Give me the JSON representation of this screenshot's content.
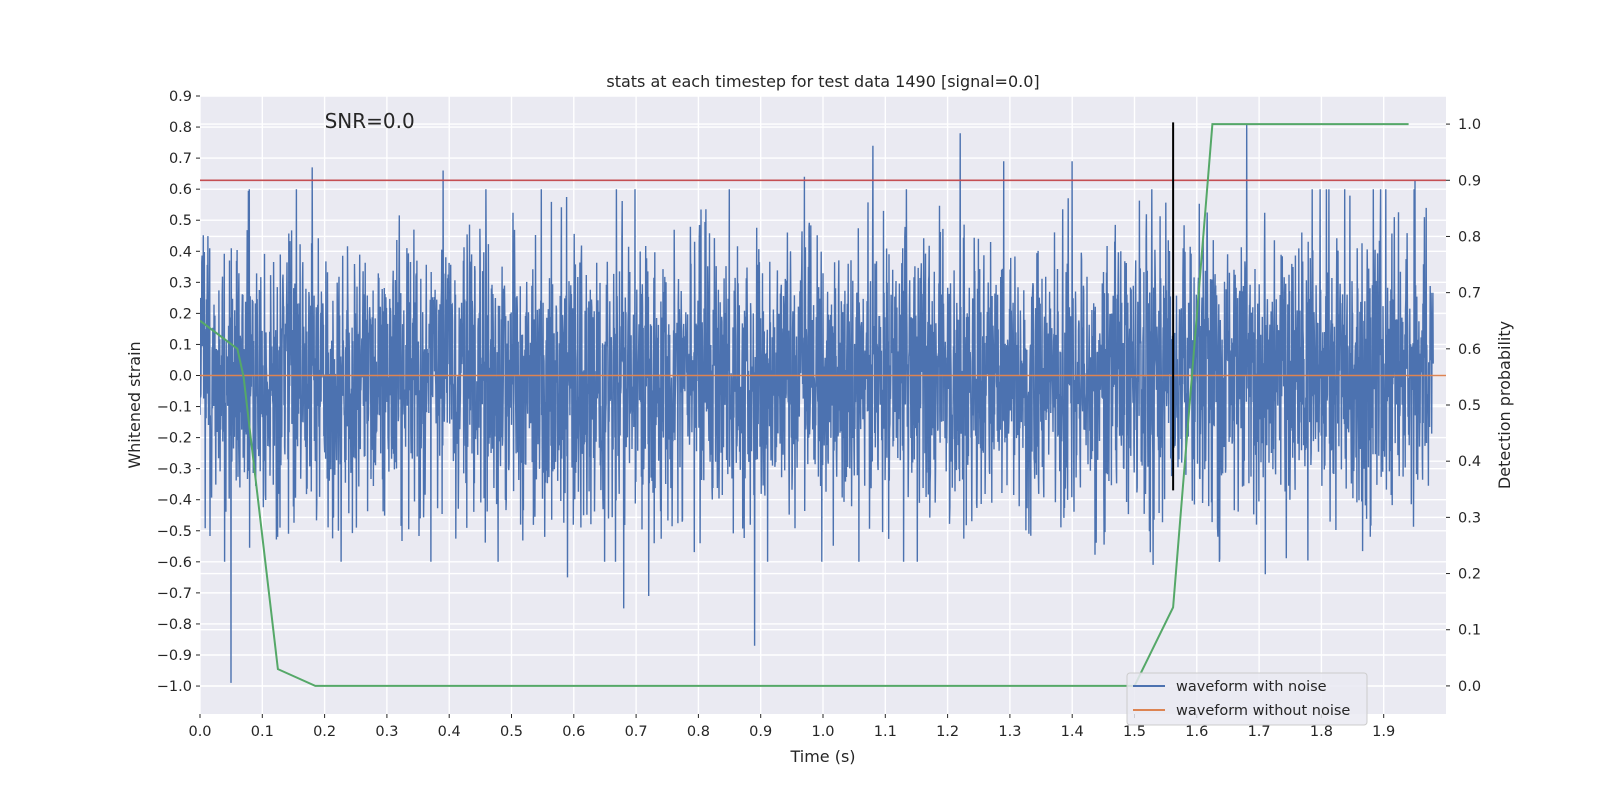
{
  "chart_data": {
    "type": "line",
    "title": "stats at each timestep for test data 1490 [signal=0.0]",
    "xlabel": "Time (s)",
    "ylabel": "Whitened strain",
    "y2label": "Detection probability",
    "xlim": [
      0.0,
      2.0
    ],
    "ylim": [
      -1.09,
      0.9
    ],
    "y2lim": [
      -0.05,
      1.05
    ],
    "x_ticks": [
      0.0,
      0.1,
      0.2,
      0.3,
      0.4,
      0.5,
      0.6,
      0.7,
      0.8,
      0.9,
      1.0,
      1.1,
      1.2,
      1.3,
      1.4,
      1.5,
      1.6,
      1.7,
      1.8,
      1.9
    ],
    "x_tick_labels": [
      "0.0",
      "0.1",
      "0.2",
      "0.3",
      "0.4",
      "0.5",
      "0.6",
      "0.7",
      "0.8",
      "0.9",
      "1.0",
      "1.1",
      "1.2",
      "1.3",
      "1.4",
      "1.5",
      "1.6",
      "1.7",
      "1.8",
      "1.9"
    ],
    "y_ticks": [
      0.9,
      0.8,
      0.7,
      0.6,
      0.5,
      0.4,
      0.3,
      0.2,
      0.1,
      0.0,
      -0.1,
      -0.2,
      -0.3,
      -0.4,
      -0.5,
      -0.6,
      -0.7,
      -0.8,
      -0.9,
      -1.0
    ],
    "y_tick_labels": [
      "0.9",
      "0.8",
      "0.7",
      "0.6",
      "0.5",
      "0.4",
      "0.3",
      "0.2",
      "0.1",
      "0.0",
      "−0.1",
      "−0.2",
      "−0.3",
      "−0.4",
      "−0.5",
      "−0.6",
      "−0.7",
      "−0.8",
      "−0.9",
      "−1.0"
    ],
    "y2_ticks": [
      1.0,
      0.9,
      0.8,
      0.7,
      0.6,
      0.5,
      0.4,
      0.3,
      0.2,
      0.1,
      0.0
    ],
    "y2_tick_labels": [
      "1.0",
      "0.9",
      "0.8",
      "0.7",
      "0.6",
      "0.5",
      "0.4",
      "0.3",
      "0.2",
      "0.1",
      "0.0"
    ],
    "grid": true,
    "annotation": "SNR=0.0",
    "annotation_at": [
      0.2,
      0.82
    ],
    "threshold_line": {
      "axis": "y2",
      "value": 0.9,
      "color": "#c44e52"
    },
    "vertical_line": {
      "x": 1.562,
      "y_from": -0.37,
      "y_to": 0.815,
      "color": "#000000"
    },
    "noise_series": {
      "name": "waveform with noise",
      "color": "#4c72b0",
      "sample_rate": 2048,
      "duration": 1.98,
      "seed": 1490,
      "sigma": 0.22,
      "spikes": [
        {
          "x": 0.05,
          "y": -0.99
        },
        {
          "x": 0.18,
          "y": 0.67
        },
        {
          "x": 0.39,
          "y": 0.66
        },
        {
          "x": 0.59,
          "y": -0.65
        },
        {
          "x": 0.68,
          "y": -0.75
        },
        {
          "x": 0.72,
          "y": -0.71
        },
        {
          "x": 0.89,
          "y": -0.87
        },
        {
          "x": 0.97,
          "y": 0.64
        },
        {
          "x": 1.08,
          "y": 0.74
        },
        {
          "x": 1.22,
          "y": 0.78
        },
        {
          "x": 1.29,
          "y": 0.69
        },
        {
          "x": 1.4,
          "y": 0.69
        },
        {
          "x": 1.53,
          "y": -0.61
        },
        {
          "x": 1.68,
          "y": 0.81
        },
        {
          "x": 1.71,
          "y": -0.64
        },
        {
          "x": 1.95,
          "y": 0.63
        }
      ]
    },
    "clean_series": {
      "name": "waveform without noise",
      "color": "#dd8452",
      "value": 0.0
    },
    "probability_series": {
      "name": "Detection probability",
      "axis": "y2",
      "color": "#55a868",
      "x": [
        0.0,
        0.06,
        0.07,
        0.125,
        0.185,
        0.25,
        0.5,
        1.0,
        1.5,
        1.562,
        1.625,
        1.7,
        1.8,
        1.94
      ],
      "y": [
        0.65,
        0.6,
        0.55,
        0.03,
        0.0,
        0.0,
        0.0,
        0.0,
        0.0,
        0.14,
        1.0,
        1.0,
        1.0,
        1.0
      ]
    },
    "legend": {
      "position": "lower-right",
      "entries": [
        {
          "label": "waveform with noise",
          "color": "#4c72b0"
        },
        {
          "label": "waveform without noise",
          "color": "#dd8452"
        }
      ]
    }
  }
}
